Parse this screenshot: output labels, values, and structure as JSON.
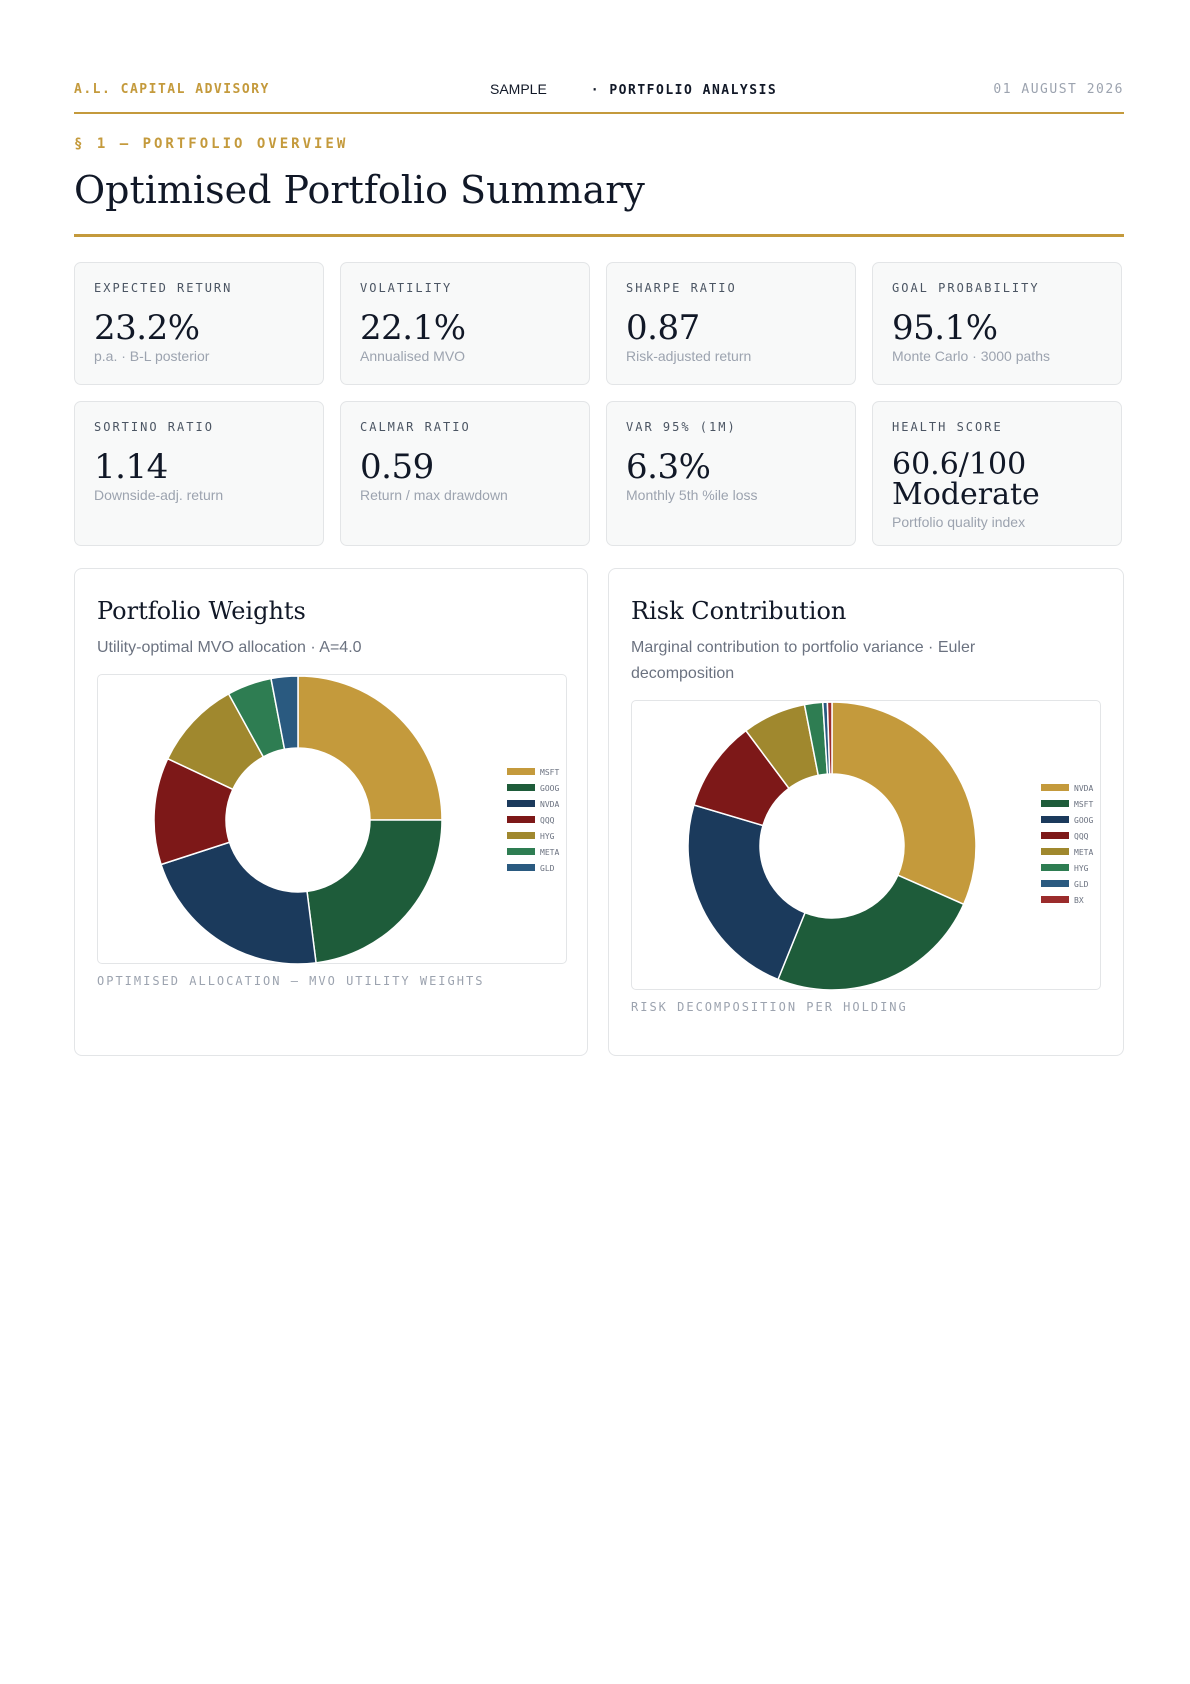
{
  "header": {
    "firm": "A.L. CAPITAL ADVISORY",
    "sample": "SAMPLE",
    "report": "· PORTFOLIO ANALYSIS",
    "date": "01 AUGUST 2026"
  },
  "section": {
    "label": "§ 1 — PORTFOLIO OVERVIEW",
    "title": "Optimised Portfolio Summary"
  },
  "metrics": [
    {
      "label": "EXPECTED RETURN",
      "value": "23.2%",
      "sub": "p.a. · B-L posterior"
    },
    {
      "label": "VOLATILITY",
      "value": "22.1%",
      "sub": "Annualised MVO"
    },
    {
      "label": "SHARPE RATIO",
      "value": "0.87",
      "sub": "Risk-adjusted return"
    },
    {
      "label": "GOAL PROBABILITY",
      "value": "95.1%",
      "sub": "Monte Carlo · 3000 paths"
    },
    {
      "label": "SORTINO RATIO",
      "value": "1.14",
      "sub": "Downside-adj. return"
    },
    {
      "label": "CALMAR RATIO",
      "value": "0.59",
      "sub": "Return / max drawdown"
    },
    {
      "label": "VAR 95% (1M)",
      "value": "6.3%",
      "sub": "Monthly 5th %ile loss"
    },
    {
      "label": "HEALTH SCORE",
      "value": "60.6/100",
      "value2": "Moderate",
      "sub": "Portfolio quality index"
    }
  ],
  "weights_panel": {
    "title": "Portfolio Weights",
    "desc": "Utility-optimal MVO allocation · A=4.0",
    "caption": "OPTIMISED ALLOCATION — MVO UTILITY WEIGHTS"
  },
  "risk_panel": {
    "title": "Risk Contribution",
    "desc": "Marginal contribution to portfolio variance · Euler decomposition",
    "caption": "RISK DECOMPOSITION PER HOLDING"
  },
  "chart_data": [
    {
      "type": "pie",
      "donut": true,
      "legend": "right",
      "categories": [
        "MSFT",
        "GOOG",
        "NVDA",
        "QQQ",
        "HYG",
        "META",
        "GLD"
      ],
      "values": [
        25.0,
        23.0,
        22.0,
        12.0,
        10.0,
        5.0,
        3.0
      ],
      "colors": [
        "#c49a3c",
        "#1e5c3a",
        "#1b3a5c",
        "#7d1818",
        "#a0882e",
        "#2e7d52",
        "#2a5a80"
      ]
    },
    {
      "type": "pie",
      "donut": true,
      "legend": "right",
      "categories": [
        "NVDA",
        "MSFT",
        "GOOG",
        "QQQ",
        "META",
        "HYG",
        "GLD",
        "BX"
      ],
      "values": [
        31.0,
        24.0,
        23.0,
        10.0,
        7.0,
        2.0,
        0.5,
        0.5
      ],
      "colors": [
        "#c49a3c",
        "#1e5c3a",
        "#1b3a5c",
        "#7d1818",
        "#a0882e",
        "#2e7d52",
        "#2a5a80",
        "#9b2c2c"
      ]
    }
  ]
}
